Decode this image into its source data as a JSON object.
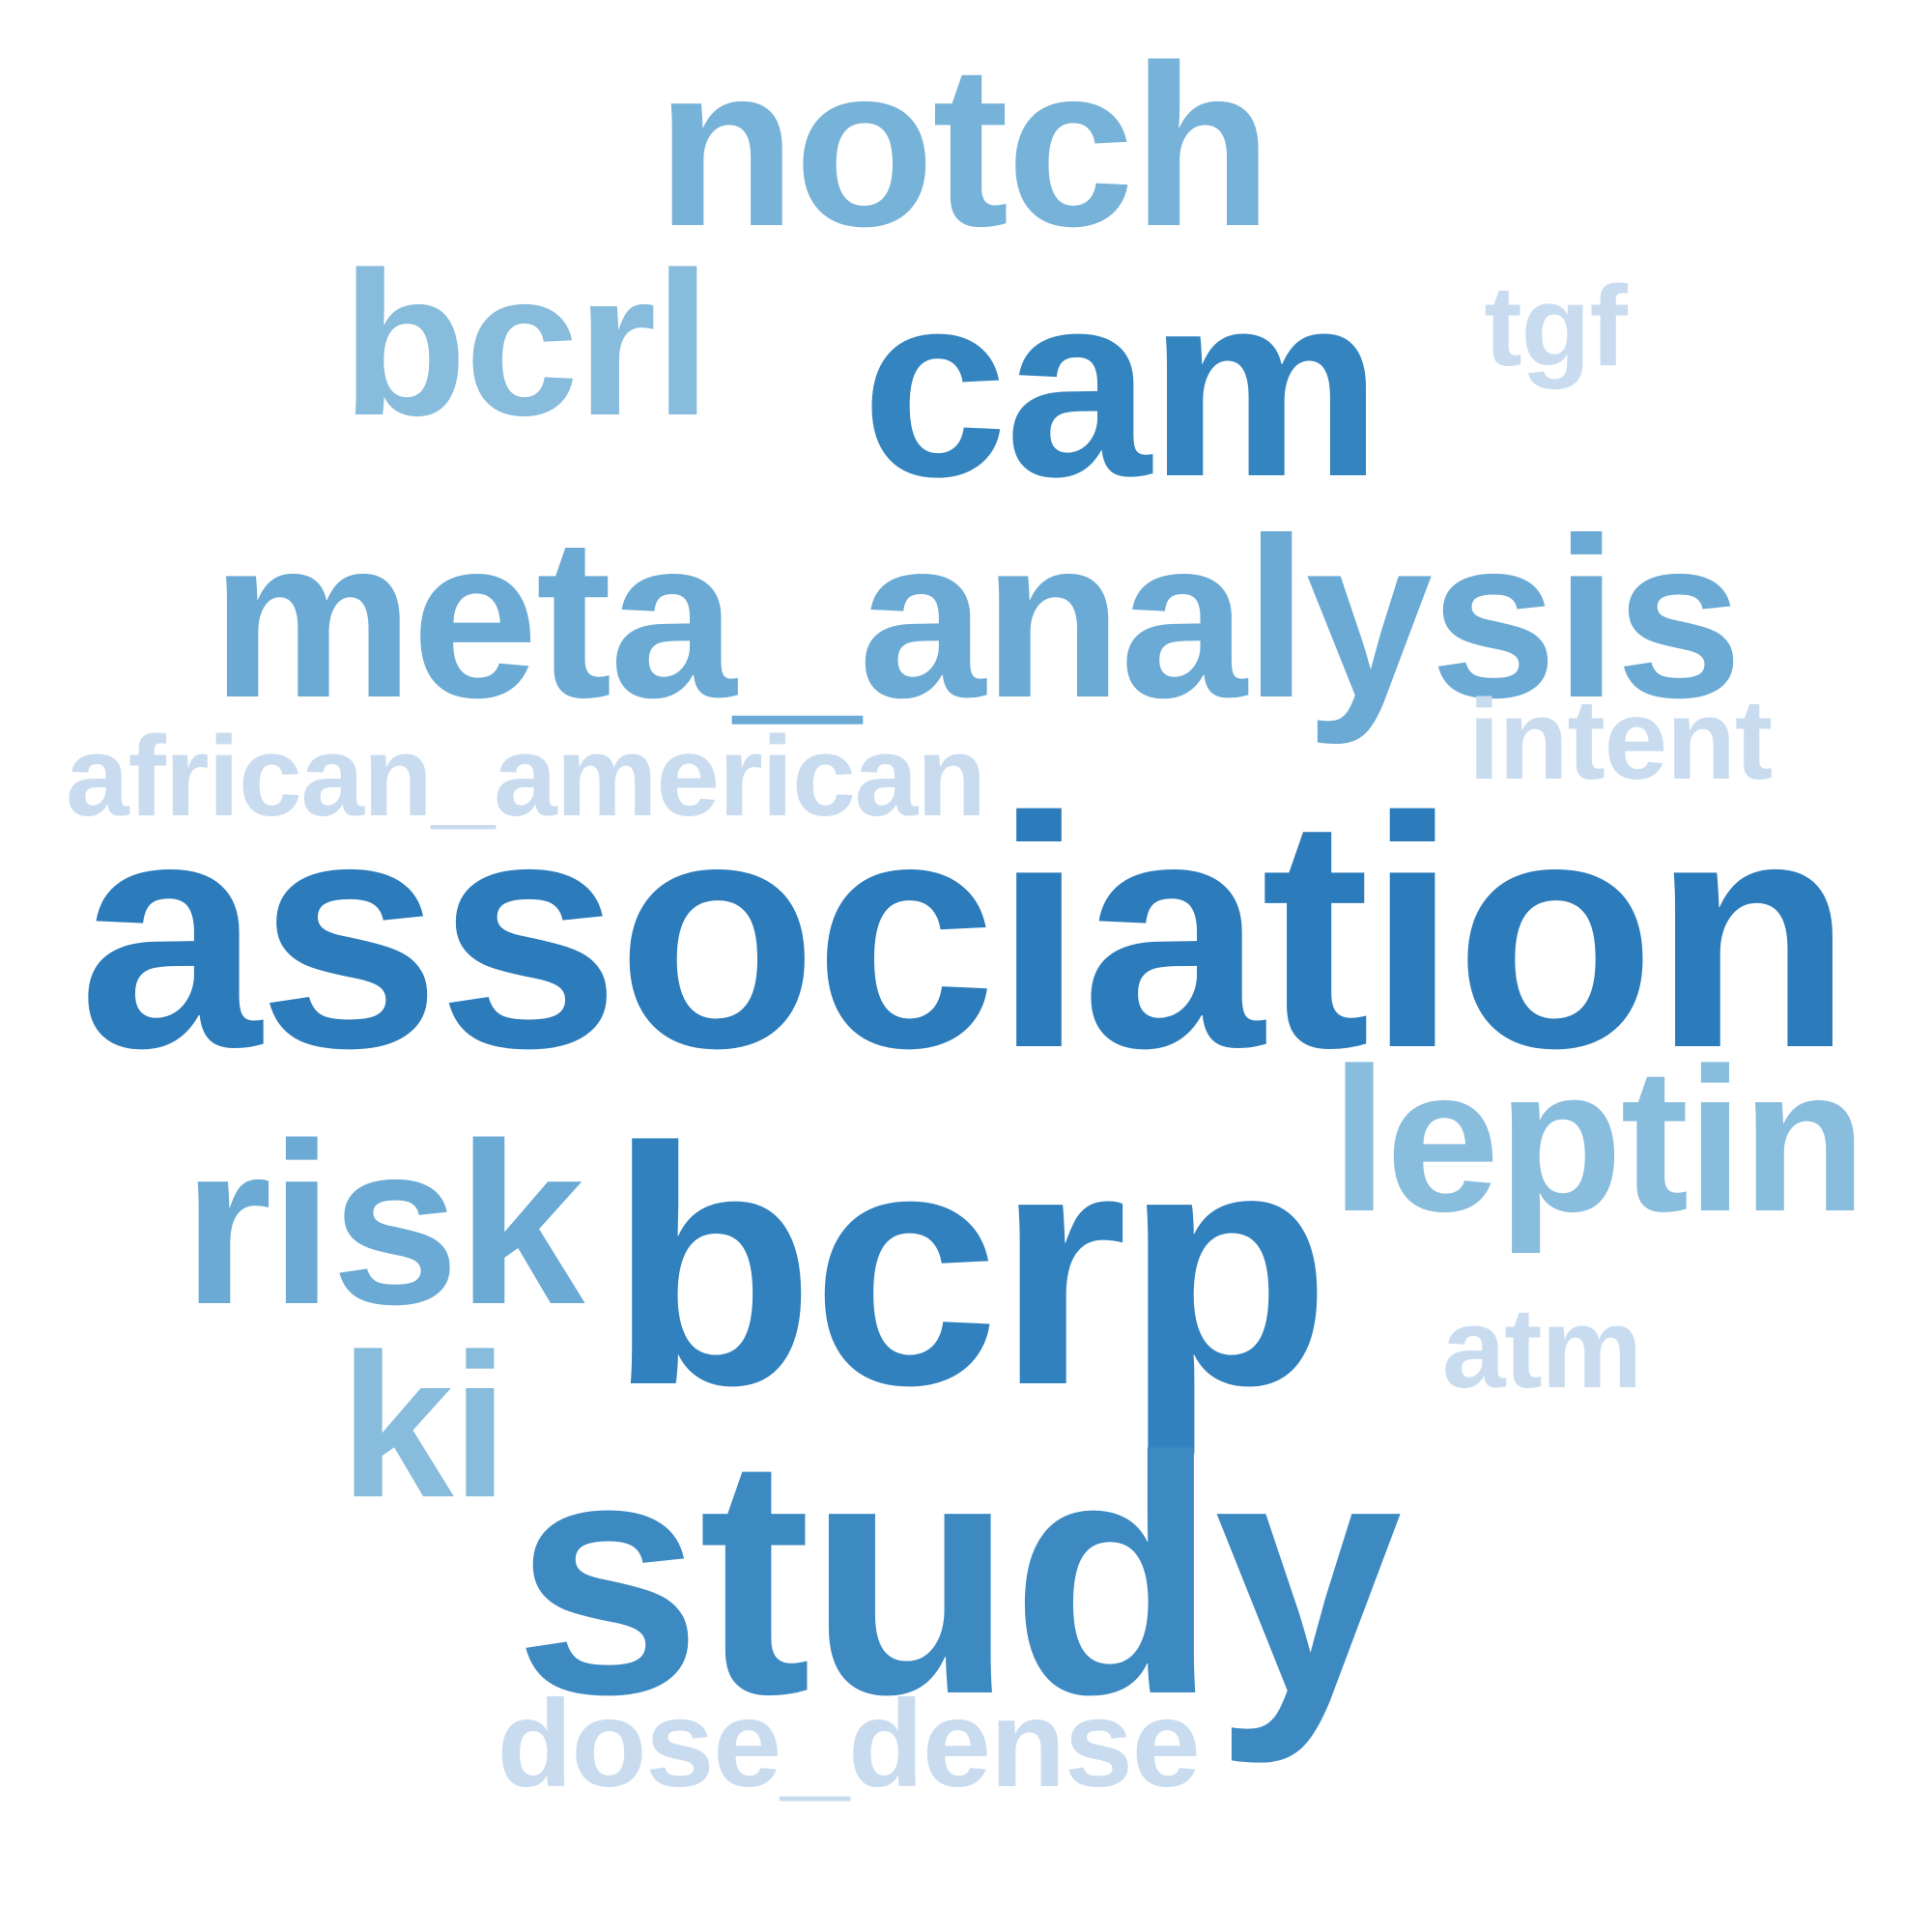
{
  "words": [
    {
      "text": "notch",
      "color": "#77b2d8"
    },
    {
      "text": "bcrl",
      "color": "#87bcdc"
    },
    {
      "text": "cam",
      "color": "#3484bf"
    },
    {
      "text": "tgf",
      "color": "#c9dcef"
    },
    {
      "text": "meta_analysis",
      "color": "#6aaad4"
    },
    {
      "text": "intent",
      "color": "#c9dcef"
    },
    {
      "text": "african_american",
      "color": "#c9dcef"
    },
    {
      "text": "association",
      "color": "#2c7bbb"
    },
    {
      "text": "risk",
      "color": "#6aaad4"
    },
    {
      "text": "bcrp",
      "color": "#3181be"
    },
    {
      "text": "leptin",
      "color": "#89bddd"
    },
    {
      "text": "atm",
      "color": "#c9dcef"
    },
    {
      "text": "ki",
      "color": "#87bcdc"
    },
    {
      "text": "study",
      "color": "#3d8ac3"
    },
    {
      "text": "dose_dense",
      "color": "#c9dcef"
    }
  ]
}
